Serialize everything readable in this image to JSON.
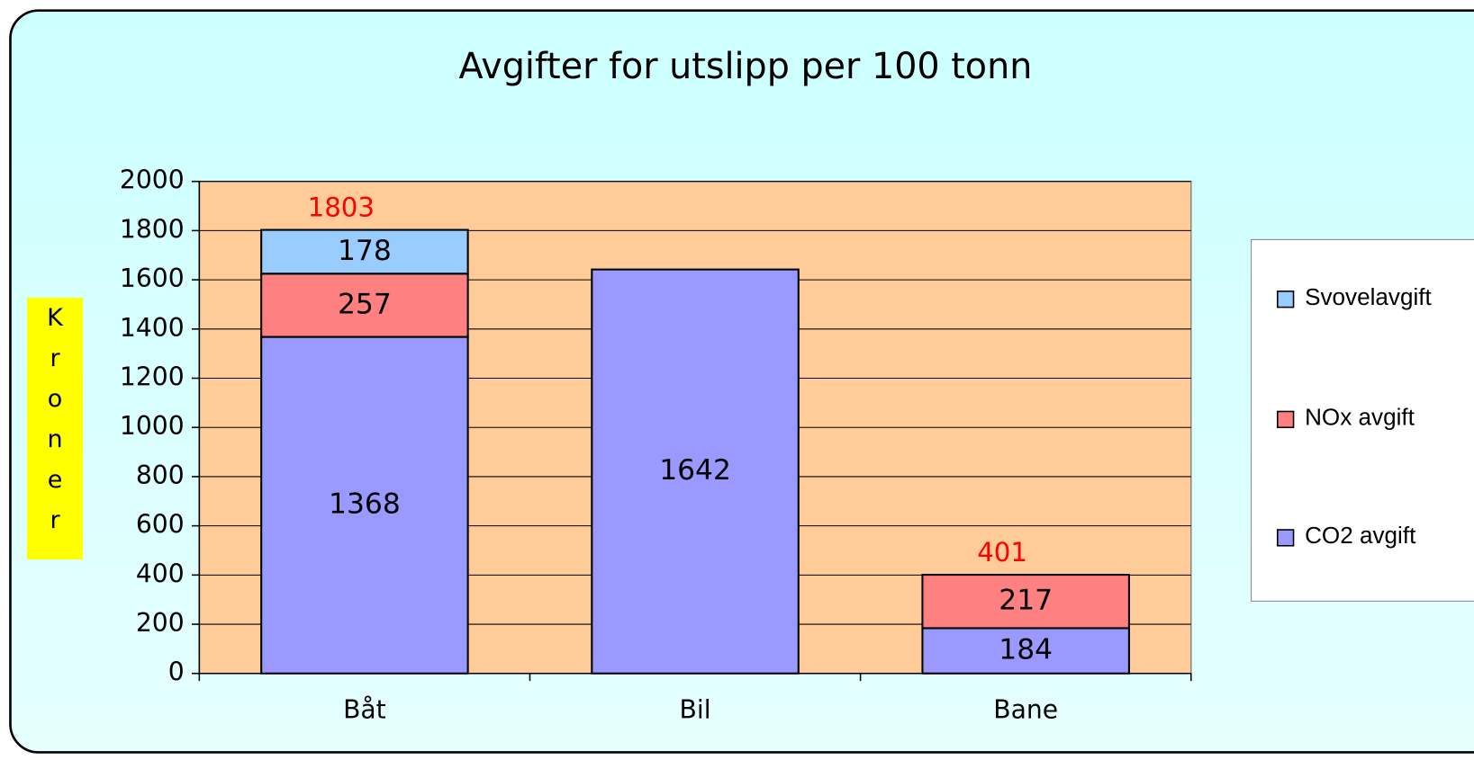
{
  "chart_data": {
    "type": "stacked_bar",
    "title": "Avgifter for utslipp per 100 tonn",
    "y_label": "Kroner",
    "categories": [
      "Båt",
      "Bil",
      "Bane"
    ],
    "series": [
      {
        "name": "CO2 avgift",
        "color": "#9999ff",
        "values": [
          1368,
          1642,
          184
        ]
      },
      {
        "name": "NOx avgift",
        "color": "#ff8080",
        "values": [
          257,
          null,
          217
        ]
      },
      {
        "name": "Svovelavgift",
        "color": "#99ccff",
        "values": [
          178,
          null,
          null
        ]
      }
    ],
    "totals": [
      1803,
      null,
      401
    ],
    "totals_color": "#ff0000",
    "ylim": [
      0,
      2000
    ],
    "yticks": [
      0,
      200,
      400,
      600,
      800,
      1000,
      1200,
      1400,
      1600,
      1800,
      2000
    ],
    "grid": true,
    "legend": "right",
    "plot_background": "#ffcc99"
  }
}
